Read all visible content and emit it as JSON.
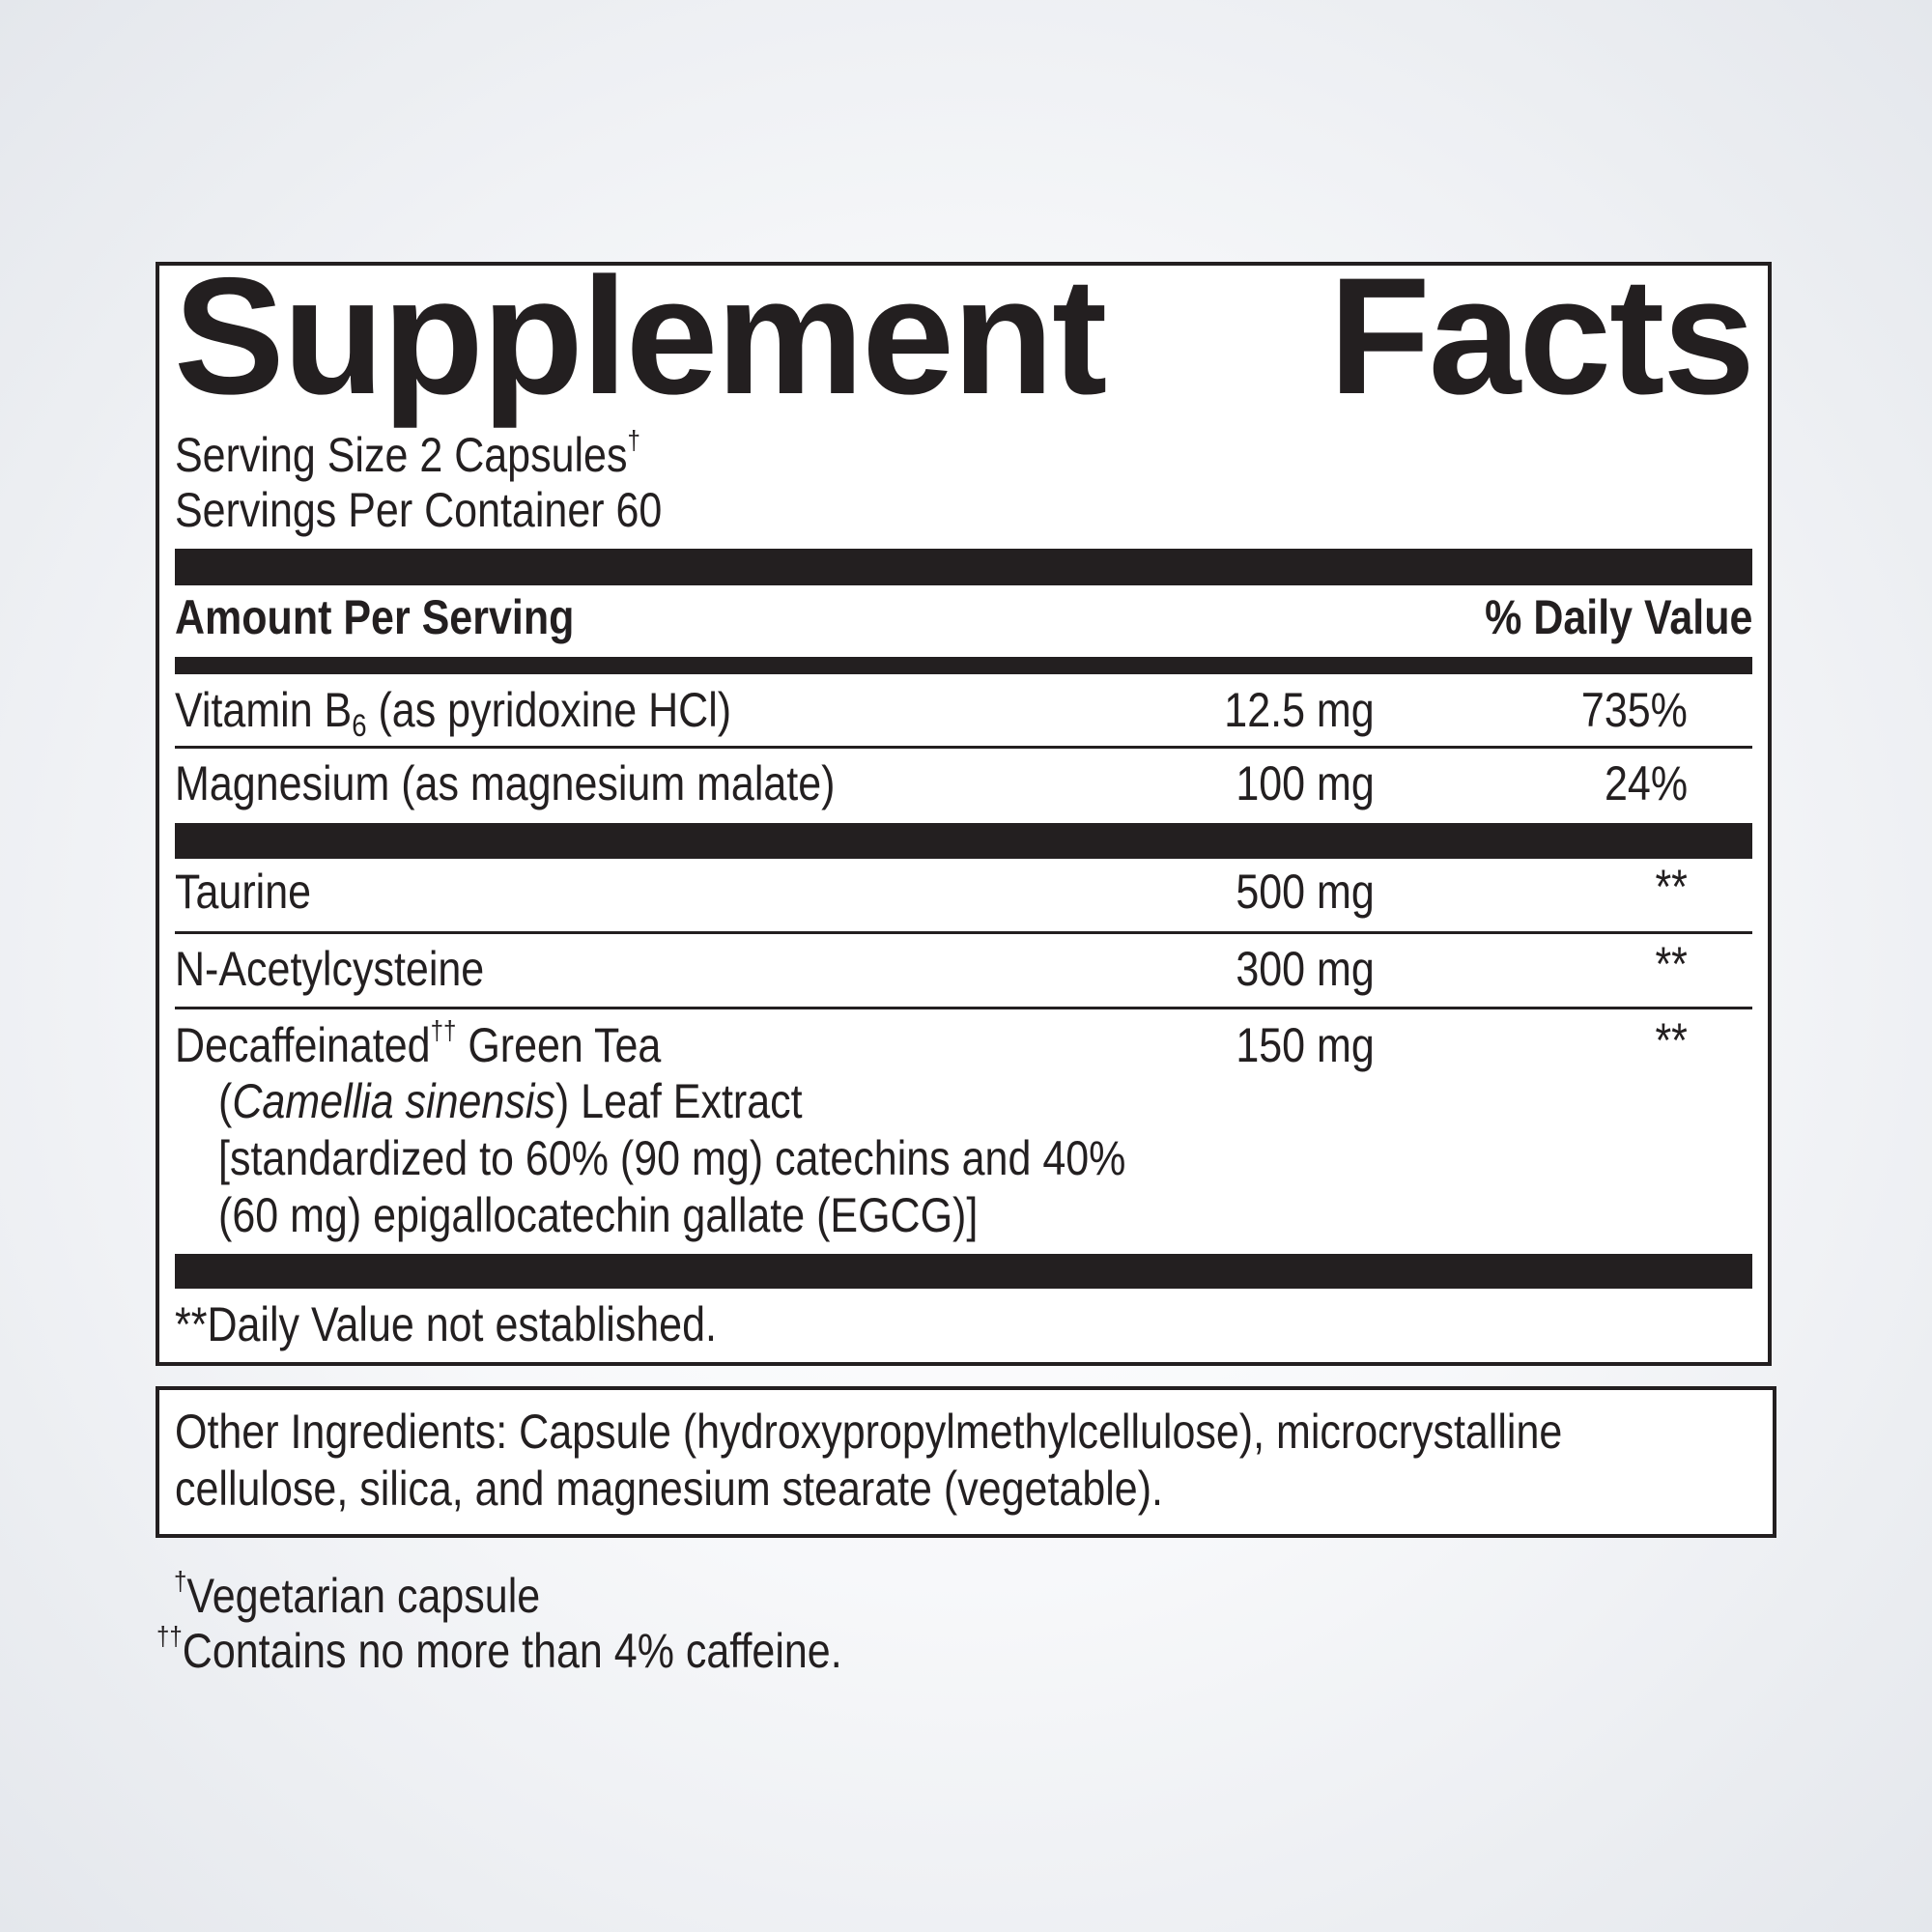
{
  "title": {
    "word1": "Supplement",
    "word2": "Facts"
  },
  "serving_size": "Serving Size 2 Capsules",
  "serving_size_mark": "†",
  "servings_per_container": "Servings Per Container 60",
  "header": {
    "amount": "Amount Per Serving",
    "dv": "% Daily Value"
  },
  "rows": [
    {
      "name": "Vitamin B",
      "sub": "6",
      "name_rest": " (as pyridoxine HCl)",
      "amount": "12.5 mg",
      "dv": "735%"
    },
    {
      "name": "Magnesium (as magnesium malate)",
      "amount": "100 mg",
      "dv": "24%"
    },
    {
      "name": "Taurine",
      "amount": "500 mg",
      "dv": "**"
    },
    {
      "name": "N-Acetylcysteine",
      "amount": "300 mg",
      "dv": "**"
    },
    {
      "name": "Decaffeinated",
      "mark": "††",
      "name_rest": " Green Tea",
      "amount": "150 mg",
      "dv": "**",
      "line2_open": "(",
      "line2_italic": "Camellia sinensis",
      "line2_rest": ") Leaf Extract",
      "line3": "[standardized to 60% (90 mg) catechins and 40%",
      "line4": "(60 mg) epigallocatechin gallate (EGCG)]"
    }
  ],
  "dv_note": "**Daily Value not established.",
  "other_ingredients": {
    "line1": "Other Ingredients: Capsule (hydroxypropylmethylcellulose), microcrystalline",
    "line2": "cellulose, silica, and magnesium stearate (vegetable)."
  },
  "footnotes": [
    {
      "mark": "†",
      "text": "Vegetarian capsule"
    },
    {
      "mark": "††",
      "text": "Contains no more than 4% caffeine."
    }
  ]
}
